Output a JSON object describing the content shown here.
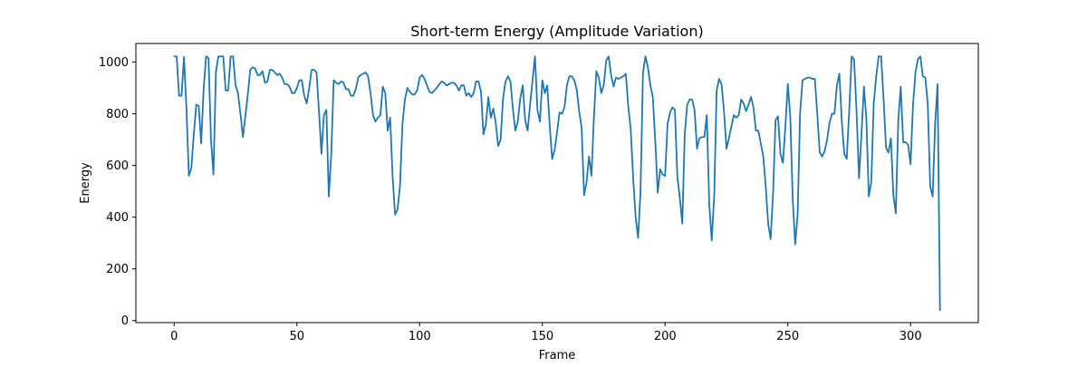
{
  "chart_data": {
    "type": "line",
    "title": "Short-term Energy (Amplitude Variation)",
    "xlabel": "Frame",
    "ylabel": "Energy",
    "xlim": [
      -15.6,
      327.6
    ],
    "ylim": [
      -8,
      1072
    ],
    "x_ticks": [
      0,
      50,
      100,
      150,
      200,
      250,
      300
    ],
    "y_ticks": [
      0,
      200,
      400,
      600,
      800,
      1000
    ],
    "grid": false,
    "legend": "none",
    "line_color": "#1f77b4",
    "series": [
      {
        "x_start": 0,
        "x_step": 1,
        "values": [
          1022,
          1022,
          870,
          870,
          1020,
          820,
          560,
          590,
          720,
          835,
          830,
          685,
          895,
          1022,
          1015,
          700,
          565,
          960,
          1022,
          1022,
          1022,
          890,
          890,
          1022,
          1022,
          910,
          880,
          800,
          710,
          790,
          875,
          970,
          980,
          975,
          950,
          950,
          965,
          920,
          925,
          970,
          970,
          960,
          950,
          955,
          940,
          915,
          915,
          905,
          880,
          880,
          900,
          930,
          930,
          870,
          840,
          900,
          970,
          970,
          960,
          810,
          645,
          795,
          815,
          480,
          645,
          930,
          920,
          915,
          925,
          920,
          895,
          895,
          870,
          870,
          895,
          940,
          950,
          955,
          960,
          945,
          880,
          795,
          770,
          785,
          795,
          905,
          880,
          735,
          785,
          555,
          410,
          430,
          520,
          760,
          855,
          900,
          885,
          875,
          875,
          890,
          940,
          950,
          935,
          910,
          885,
          880,
          890,
          900,
          915,
          925,
          920,
          910,
          915,
          920,
          920,
          910,
          890,
          910,
          910,
          870,
          880,
          865,
          880,
          925,
          925,
          885,
          720,
          760,
          865,
          785,
          820,
          765,
          675,
          700,
          860,
          925,
          945,
          925,
          820,
          735,
          770,
          860,
          910,
          775,
          735,
          835,
          930,
          1022,
          815,
          770,
          930,
          880,
          910,
          755,
          625,
          660,
          730,
          805,
          800,
          825,
          910,
          945,
          945,
          930,
          895,
          810,
          745,
          485,
          535,
          635,
          560,
          785,
          965,
          940,
          880,
          910,
          1005,
          1022,
          950,
          905,
          940,
          935,
          940,
          945,
          955,
          830,
          740,
          550,
          400,
          320,
          500,
          960,
          1022,
          980,
          910,
          865,
          695,
          495,
          585,
          565,
          560,
          760,
          805,
          825,
          815,
          555,
          475,
          375,
          720,
          835,
          855,
          855,
          815,
          665,
          705,
          710,
          710,
          795,
          450,
          310,
          480,
          890,
          935,
          915,
          810,
          665,
          705,
          750,
          795,
          785,
          795,
          855,
          840,
          810,
          835,
          865,
          825,
          735,
          735,
          685,
          635,
          520,
          375,
          315,
          495,
          775,
          790,
          645,
          610,
          750,
          915,
          790,
          470,
          295,
          410,
          805,
          930,
          935,
          940,
          940,
          935,
          935,
          800,
          650,
          635,
          655,
          700,
          765,
          800,
          800,
          910,
          955,
          770,
          645,
          625,
          810,
          1022,
          1010,
          810,
          550,
          720,
          905,
          780,
          480,
          535,
          840,
          945,
          1022,
          1022,
          860,
          670,
          650,
          705,
          485,
          415,
          775,
          905,
          690,
          690,
          680,
          605,
          835,
          960,
          1012,
          1022,
          945,
          940,
          840,
          520,
          480,
          760,
          915,
          40
        ]
      }
    ]
  }
}
